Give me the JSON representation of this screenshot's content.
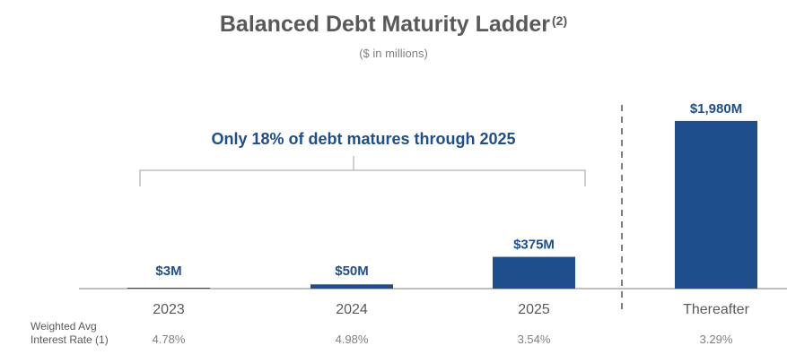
{
  "title": "Balanced Debt Maturity Ladder",
  "title_note": "(2)",
  "subtitle": "($ in millions)",
  "callout": "Only 18% of debt matures through 2025",
  "rate_label_line1": "Weighted Avg",
  "rate_label_line2": "Interest Rate (1)",
  "colors": {
    "bar": "#1f4e8c",
    "label": "#1f4e8c",
    "axis": "#bfbfbf",
    "divider": "#7f7f7f"
  },
  "chart_data": {
    "type": "bar",
    "categories": [
      "2023",
      "2024",
      "2025",
      "Thereafter"
    ],
    "values": [
      3,
      50,
      375,
      1980
    ],
    "data_labels": [
      "$3M",
      "$50M",
      "$375M",
      "$1,980M"
    ],
    "interest_rates": [
      "4.78%",
      "4.98%",
      "3.54%",
      "3.29%"
    ],
    "ylim": [
      0,
      2000
    ],
    "grid": false,
    "title": "Balanced Debt Maturity Ladder",
    "xlabel": "",
    "ylabel": ""
  }
}
